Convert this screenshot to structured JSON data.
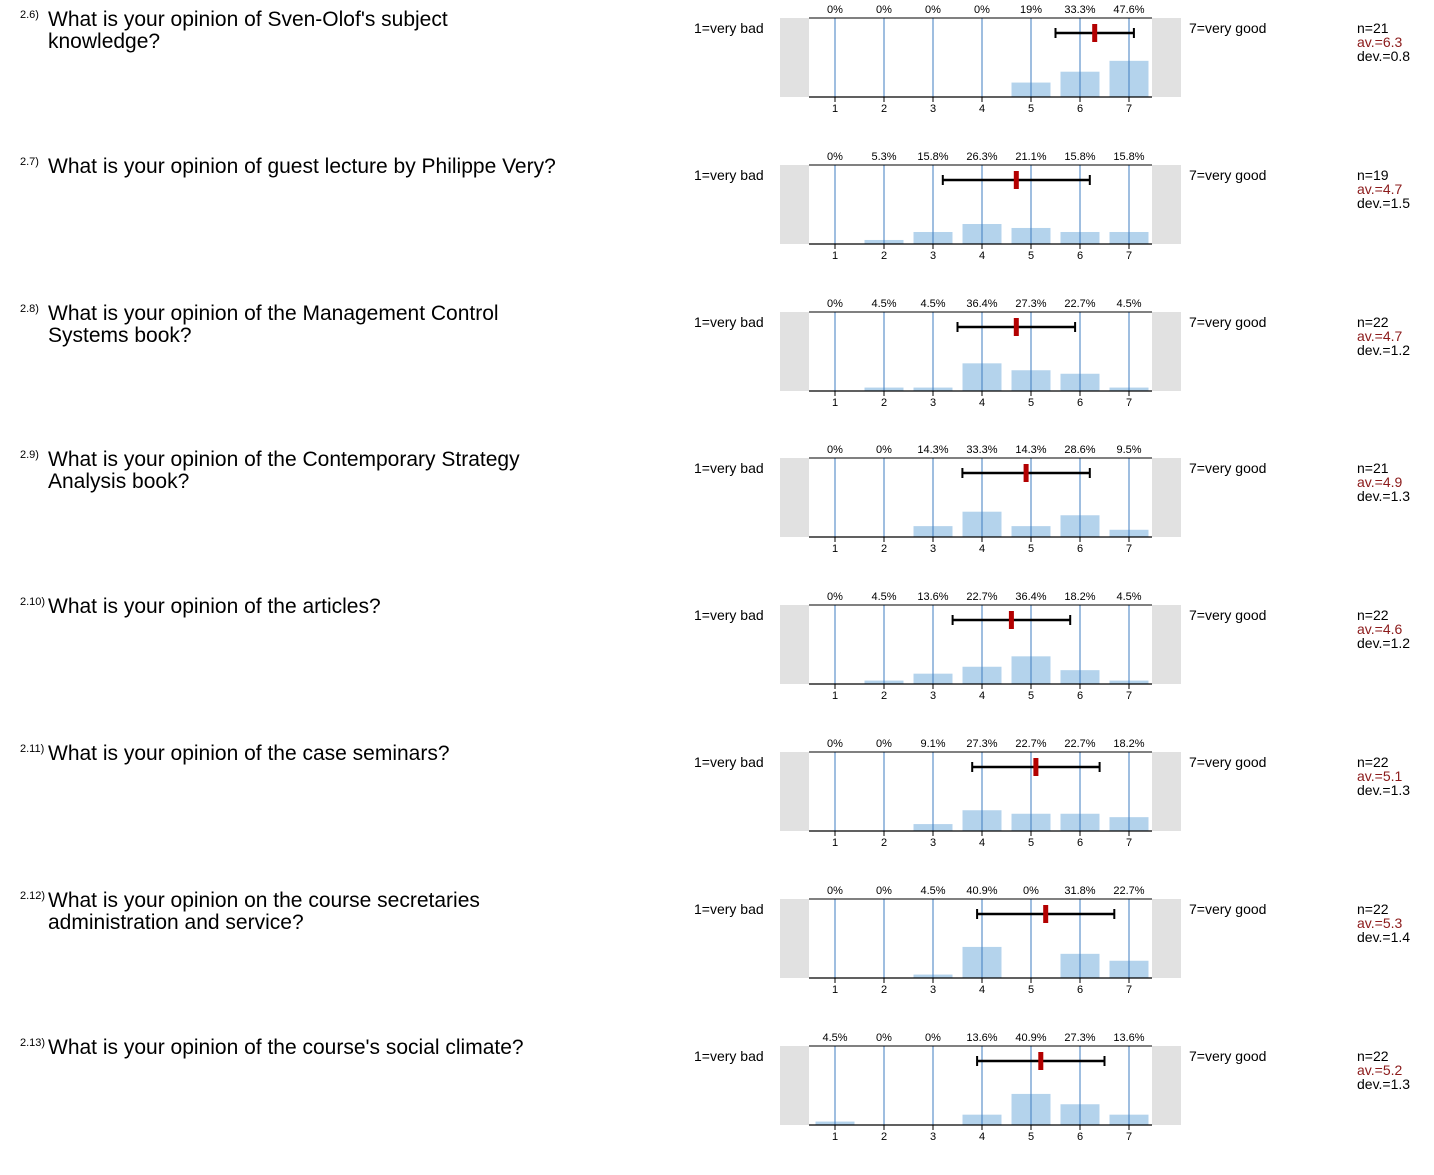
{
  "scale": {
    "left_label": "1=very bad",
    "right_label": "7=very good",
    "ticks": [
      "1",
      "2",
      "3",
      "4",
      "5",
      "6",
      "7"
    ],
    "colors": {
      "bar": "#b4d3ec",
      "grid": "#3f7cc0",
      "mean": "#b30000",
      "side": "#e1e1e1",
      "stats_av": "#8b1a1a"
    }
  },
  "questions": [
    {
      "num": "2.6)",
      "lines": [
        "What is your opinion of Sven-Olof's subject",
        "knowledge?"
      ],
      "pct_labels": [
        "0%",
        "0%",
        "0%",
        "0%",
        "19%",
        "33.3%",
        "47.6%"
      ],
      "n": "n=21",
      "av": "av.=6.3",
      "dev": "dev.=0.8"
    },
    {
      "num": "2.7)",
      "lines": [
        "What is your opinion of guest lecture by Philippe Very?"
      ],
      "pct_labels": [
        "0%",
        "5.3%",
        "15.8%",
        "26.3%",
        "21.1%",
        "15.8%",
        "15.8%"
      ],
      "n": "n=19",
      "av": "av.=4.7",
      "dev": "dev.=1.5"
    },
    {
      "num": "2.8)",
      "lines": [
        "What is your opinion of the Management Control",
        "Systems book?"
      ],
      "pct_labels": [
        "0%",
        "4.5%",
        "4.5%",
        "36.4%",
        "27.3%",
        "22.7%",
        "4.5%"
      ],
      "n": "n=22",
      "av": "av.=4.7",
      "dev": "dev.=1.2"
    },
    {
      "num": "2.9)",
      "lines": [
        "What is your opinion of the Contemporary Strategy",
        "Analysis book?"
      ],
      "pct_labels": [
        "0%",
        "0%",
        "14.3%",
        "33.3%",
        "14.3%",
        "28.6%",
        "9.5%"
      ],
      "n": "n=21",
      "av": "av.=4.9",
      "dev": "dev.=1.3"
    },
    {
      "num": "2.10)",
      "lines": [
        "What is your opinion of the articles?"
      ],
      "pct_labels": [
        "0%",
        "4.5%",
        "13.6%",
        "22.7%",
        "36.4%",
        "18.2%",
        "4.5%"
      ],
      "n": "n=22",
      "av": "av.=4.6",
      "dev": "dev.=1.2"
    },
    {
      "num": "2.11)",
      "lines": [
        "What is your opinion of the case seminars?"
      ],
      "pct_labels": [
        "0%",
        "0%",
        "9.1%",
        "27.3%",
        "22.7%",
        "22.7%",
        "18.2%"
      ],
      "n": "n=22",
      "av": "av.=5.1",
      "dev": "dev.=1.3"
    },
    {
      "num": "2.12)",
      "lines": [
        "What is your opinion on the course secretaries",
        "administration and service?"
      ],
      "pct_labels": [
        "0%",
        "0%",
        "4.5%",
        "40.9%",
        "0%",
        "31.8%",
        "22.7%"
      ],
      "n": "n=22",
      "av": "av.=5.3",
      "dev": "dev.=1.4"
    },
    {
      "num": "2.13)",
      "lines": [
        "What is your opinion of the course's social climate?"
      ],
      "pct_labels": [
        "4.5%",
        "0%",
        "0%",
        "13.6%",
        "40.9%",
        "27.3%",
        "13.6%"
      ],
      "n": "n=22",
      "av": "av.=5.2",
      "dev": "dev.=1.3"
    }
  ],
  "chart_data": {
    "type": "bar",
    "categories": [
      "1",
      "2",
      "3",
      "4",
      "5",
      "6",
      "7"
    ],
    "xlim": [
      1,
      7
    ],
    "ylim": [
      0,
      100
    ],
    "series": [
      {
        "values": [
          0,
          0,
          0,
          0,
          19,
          33.3,
          47.6
        ],
        "mean": 6.3,
        "sd": 0.8,
        "n": 21
      },
      {
        "values": [
          0,
          5.3,
          15.8,
          26.3,
          21.1,
          15.8,
          15.8
        ],
        "mean": 4.7,
        "sd": 1.5,
        "n": 19
      },
      {
        "values": [
          0,
          4.5,
          4.5,
          36.4,
          27.3,
          22.7,
          4.5
        ],
        "mean": 4.7,
        "sd": 1.2,
        "n": 22
      },
      {
        "values": [
          0,
          0,
          14.3,
          33.3,
          14.3,
          28.6,
          9.5
        ],
        "mean": 4.9,
        "sd": 1.3,
        "n": 21
      },
      {
        "values": [
          0,
          4.5,
          13.6,
          22.7,
          36.4,
          18.2,
          4.5
        ],
        "mean": 4.6,
        "sd": 1.2,
        "n": 22
      },
      {
        "values": [
          0,
          0,
          9.1,
          27.3,
          22.7,
          22.7,
          18.2
        ],
        "mean": 5.1,
        "sd": 1.3,
        "n": 22
      },
      {
        "values": [
          0,
          0,
          4.5,
          40.9,
          0,
          31.8,
          22.7
        ],
        "mean": 5.3,
        "sd": 1.4,
        "n": 22
      },
      {
        "values": [
          4.5,
          0,
          0,
          13.6,
          40.9,
          27.3,
          13.6
        ],
        "mean": 5.2,
        "sd": 1.3,
        "n": 22
      }
    ]
  }
}
